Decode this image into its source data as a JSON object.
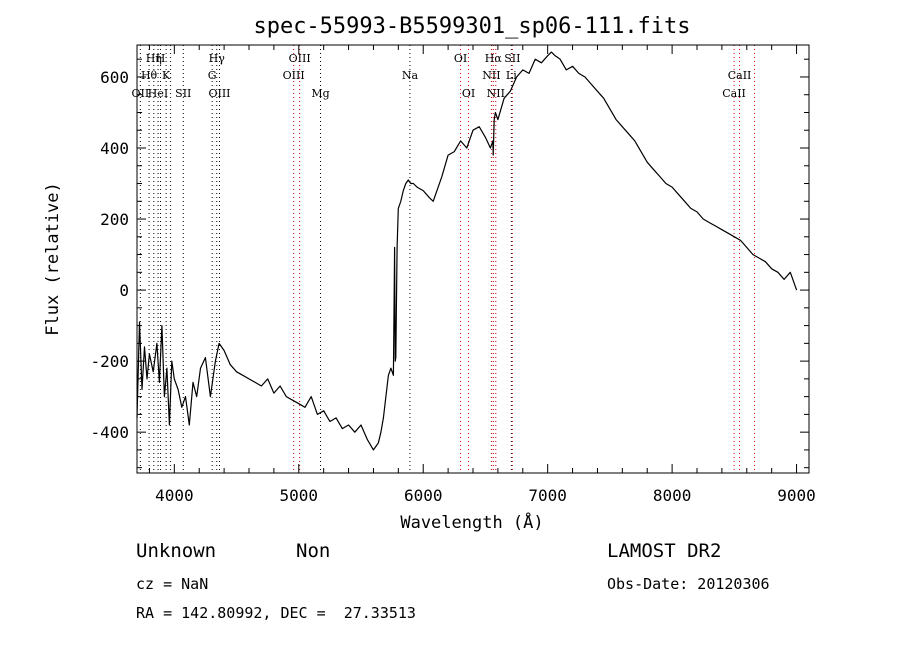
{
  "chart_data": {
    "type": "line",
    "title": "spec-55993-B5599301_sp06-111.fits",
    "xlabel": "Wavelength (Å)",
    "ylabel": "Flux (relative)",
    "xlim": [
      3700,
      9100
    ],
    "ylim": [
      -515,
      690
    ],
    "xticks": [
      4000,
      5000,
      6000,
      7000,
      8000,
      9000
    ],
    "yticks": [
      -400,
      -200,
      0,
      200,
      400,
      600
    ],
    "grid": false,
    "series": [
      {
        "color": "#000000",
        "x": [
          3700,
          3720,
          3740,
          3760,
          3780,
          3800,
          3830,
          3860,
          3880,
          3900,
          3920,
          3940,
          3960,
          3980,
          4000,
          4030,
          4060,
          4090,
          4120,
          4150,
          4180,
          4210,
          4250,
          4290,
          4330,
          4360,
          4400,
          4450,
          4500,
          4550,
          4600,
          4650,
          4700,
          4750,
          4800,
          4850,
          4900,
          4950,
          5000,
          5050,
          5100,
          5150,
          5200,
          5250,
          5300,
          5350,
          5400,
          5450,
          5500,
          5550,
          5600,
          5620,
          5640,
          5660,
          5680,
          5700,
          5720,
          5740,
          5760,
          5770,
          5775,
          5780,
          5790,
          5800,
          5820,
          5840,
          5860,
          5880,
          5900,
          5920,
          5950,
          6000,
          6050,
          6080,
          6100,
          6150,
          6200,
          6250,
          6300,
          6350,
          6400,
          6450,
          6500,
          6540,
          6560,
          6562,
          6570,
          6580,
          6600,
          6650,
          6700,
          6750,
          6800,
          6850,
          6900,
          6950,
          7000,
          7030,
          7060,
          7080,
          7100,
          7150,
          7200,
          7250,
          7300,
          7350,
          7400,
          7450,
          7500,
          7550,
          7600,
          7650,
          7700,
          7750,
          7800,
          7850,
          7900,
          7950,
          8000,
          8050,
          8100,
          8150,
          8200,
          8250,
          8300,
          8350,
          8400,
          8450,
          8500,
          8550,
          8600,
          8650,
          8700,
          8750,
          8800,
          8850,
          8900,
          8950,
          9000
        ],
        "y": [
          -360,
          -90,
          -280,
          -160,
          -250,
          -180,
          -230,
          -150,
          -260,
          -100,
          -300,
          -220,
          -380,
          -200,
          -250,
          -280,
          -330,
          -300,
          -380,
          -260,
          -300,
          -220,
          -190,
          -300,
          -200,
          -150,
          -170,
          -210,
          -230,
          -240,
          -250,
          -260,
          -270,
          -250,
          -290,
          -270,
          -300,
          -310,
          -320,
          -330,
          -300,
          -350,
          -340,
          -370,
          -360,
          -390,
          -380,
          -400,
          -380,
          -420,
          -450,
          -440,
          -430,
          -400,
          -360,
          -300,
          -240,
          -220,
          -240,
          120,
          -200,
          -190,
          120,
          230,
          250,
          280,
          300,
          310,
          300,
          300,
          290,
          280,
          260,
          250,
          270,
          320,
          380,
          390,
          420,
          400,
          450,
          460,
          430,
          400,
          420,
          380,
          480,
          500,
          480,
          540,
          560,
          600,
          620,
          610,
          650,
          640,
          660,
          670,
          660,
          655,
          650,
          620,
          630,
          610,
          600,
          580,
          560,
          540,
          510,
          480,
          460,
          440,
          420,
          390,
          360,
          340,
          320,
          300,
          290,
          270,
          250,
          230,
          220,
          200,
          190,
          180,
          170,
          160,
          150,
          140,
          120,
          100,
          90,
          80,
          60,
          50,
          30,
          50,
          0
        ]
      }
    ],
    "lines": [
      {
        "x": 3727,
        "label": "OII",
        "tier": 3,
        "color": "#000000"
      },
      {
        "x": 3797,
        "label": "Hθ",
        "tier": 2,
        "color": "#000000"
      },
      {
        "x": 3835,
        "label": "Hη",
        "tier": 1,
        "color": "#000000"
      },
      {
        "x": 3869,
        "label": "HeI",
        "tier": 3,
        "color": "#000000"
      },
      {
        "x": 3889,
        "label": "H",
        "tier": 1,
        "color": "#000000"
      },
      {
        "x": 3934,
        "label": "K",
        "tier": 2,
        "color": "#000000"
      },
      {
        "x": 3970,
        "label": "",
        "tier": 0,
        "color": "#000000"
      },
      {
        "x": 4072,
        "label": "SII",
        "tier": 3,
        "color": "#000000"
      },
      {
        "x": 4304,
        "label": "G",
        "tier": 2,
        "color": "#000000"
      },
      {
        "x": 4341,
        "label": "Hγ",
        "tier": 1,
        "color": "#000000"
      },
      {
        "x": 4363,
        "label": "OIII",
        "tier": 3,
        "color": "#000000"
      },
      {
        "x": 4959,
        "label": "OIII",
        "tier": 2,
        "color": "#cc0000"
      },
      {
        "x": 5007,
        "label": "OIII",
        "tier": 1,
        "color": "#cc0000"
      },
      {
        "x": 5175,
        "label": "Mg",
        "tier": 3,
        "color": "#000000"
      },
      {
        "x": 5893,
        "label": "Na",
        "tier": 2,
        "color": "#000000"
      },
      {
        "x": 6300,
        "label": "OI",
        "tier": 1,
        "color": "#cc0000"
      },
      {
        "x": 6364,
        "label": "OI",
        "tier": 3,
        "color": "#cc0000"
      },
      {
        "x": 6548,
        "label": "NII",
        "tier": 2,
        "color": "#cc0000"
      },
      {
        "x": 6563,
        "label": "Hα",
        "tier": 1,
        "color": "#cc0000"
      },
      {
        "x": 6583,
        "label": "NII",
        "tier": 3,
        "color": "#cc0000"
      },
      {
        "x": 6708,
        "label": "Li",
        "tier": 2,
        "color": "#000000"
      },
      {
        "x": 6716,
        "label": "SII",
        "tier": 1,
        "color": "#cc0000"
      },
      {
        "x": 8498,
        "label": "CaII",
        "tier": 3,
        "color": "#cc0000"
      },
      {
        "x": 8542,
        "label": "CaII",
        "tier": 2,
        "color": "#cc0000"
      },
      {
        "x": 8662,
        "label": "",
        "tier": 0,
        "color": "#cc0000"
      }
    ]
  },
  "info": {
    "class": "Unknown",
    "subclass": "Non",
    "survey": "LAMOST DR2",
    "cz": "cz = NaN",
    "obs_date": "Obs-Date: 20120306",
    "coords": "RA = 142.80992, DEC =  27.33513"
  }
}
